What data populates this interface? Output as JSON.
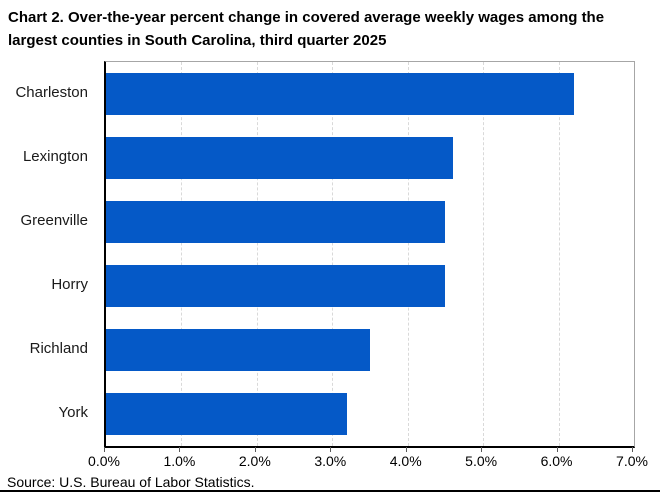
{
  "title": "Chart 2. Over-the-year percent change in covered average weekly wages among the largest counties in South Carolina, third quarter 2025",
  "source": "Source: U.S. Bureau of Labor Statistics.",
  "colors": {
    "bar": "#0559c7",
    "gridline": "#d9d9d9",
    "axis": "#000000",
    "plot_border": "#a6a6a6"
  },
  "chart_data": {
    "type": "bar",
    "orientation": "horizontal",
    "title": "Chart 2. Over-the-year percent change in covered average weekly wages among the largest counties in South Carolina, third quarter 2025",
    "categories": [
      "Charleston",
      "Lexington",
      "Greenville",
      "Horry",
      "Richland",
      "York"
    ],
    "values": [
      6.2,
      4.6,
      4.5,
      4.5,
      3.5,
      3.2
    ],
    "value_unit": "%",
    "xlabel": "",
    "ylabel": "",
    "xlim": [
      0,
      7
    ],
    "x_tick_step": 1.0,
    "x_tick_labels": [
      "0.0%",
      "1.0%",
      "2.0%",
      "3.0%",
      "4.0%",
      "5.0%",
      "6.0%",
      "7.0%"
    ],
    "grid": "vertical-dashed",
    "legend": "none",
    "source": "Source: U.S. Bureau of Labor Statistics."
  }
}
